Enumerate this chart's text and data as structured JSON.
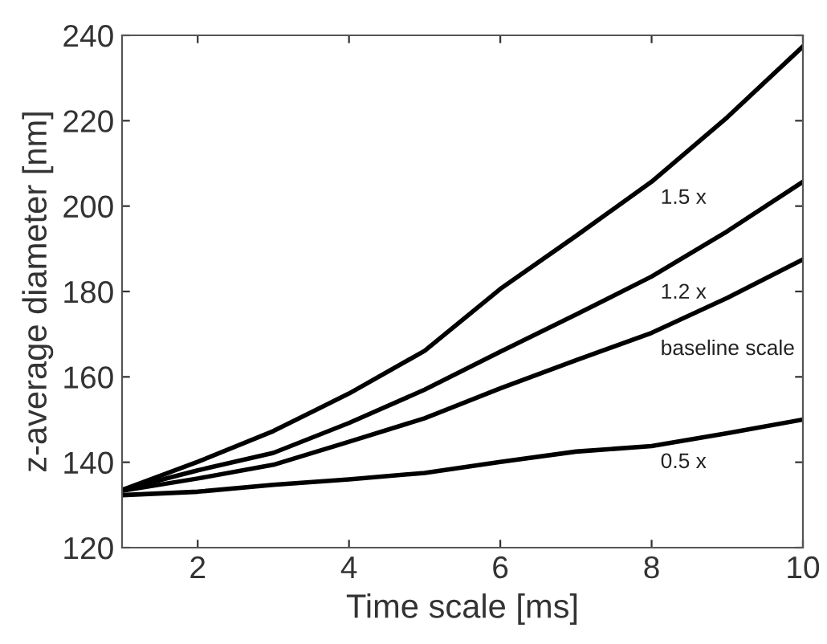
{
  "chart_data": {
    "type": "line",
    "xlabel": "Time scale [ms]",
    "ylabel": "z-average diameter [nm]",
    "x": [
      1,
      2,
      3,
      4,
      5,
      6,
      7,
      8,
      9,
      10
    ],
    "series": [
      {
        "name": "1.5 x",
        "color": "#000000",
        "values": [
          133.5,
          140.1,
          147.3,
          156.1,
          166.1,
          180.6,
          193.0,
          205.7,
          220.8,
          237.4
        ]
      },
      {
        "name": "1.2 x",
        "color": "#000000",
        "values": [
          133.5,
          138.1,
          142.2,
          149.2,
          157.0,
          165.9,
          174.6,
          183.5,
          194.1,
          205.7
        ]
      },
      {
        "name": "baseline scale",
        "color": "#000000",
        "values": [
          133.3,
          136.2,
          139.4,
          144.8,
          150.3,
          157.3,
          163.9,
          170.3,
          178.5,
          187.5
        ]
      },
      {
        "name": "0.5 x",
        "color": "#000000",
        "values": [
          132.3,
          133.1,
          134.7,
          136.0,
          137.5,
          140.1,
          142.5,
          143.8,
          146.8,
          150.0
        ]
      }
    ],
    "xlim": [
      1,
      10
    ],
    "xticks": [
      2,
      4,
      6,
      8,
      10
    ],
    "ylim": [
      120,
      240
    ],
    "yticks": [
      120,
      140,
      160,
      180,
      200,
      220,
      240
    ],
    "grid": false,
    "legend": false,
    "marker": "none",
    "line_style": "solid"
  }
}
